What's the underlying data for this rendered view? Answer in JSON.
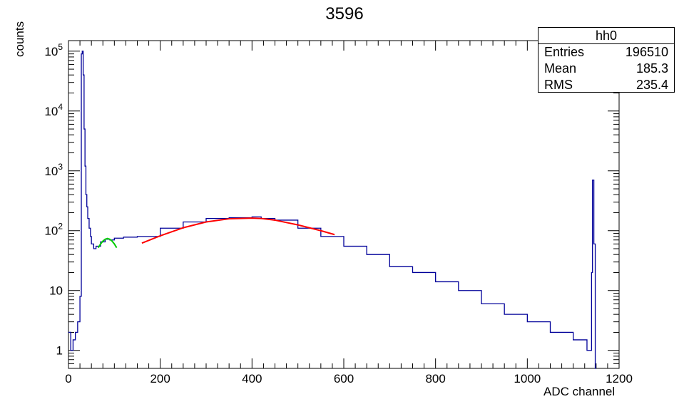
{
  "title": "3596",
  "stats_box": {
    "name": "hh0",
    "rows": [
      {
        "label": "Entries",
        "value": "196510"
      },
      {
        "label": "Mean",
        "value": "185.3"
      },
      {
        "label": "RMS",
        "value": "235.4"
      }
    ]
  },
  "chart_data": {
    "type": "line",
    "title": "3596",
    "xlabel": "ADC channel",
    "ylabel": "counts",
    "xlim": [
      0,
      1200
    ],
    "ylim": [
      0.5,
      150000
    ],
    "yscale": "log",
    "grid": false,
    "x_ticks": [
      0,
      200,
      400,
      600,
      800,
      1000,
      1200
    ],
    "y_ticks": [
      {
        "value": 1,
        "label": "1"
      },
      {
        "value": 10,
        "label": "10"
      },
      {
        "value": 100,
        "label": "10^2"
      },
      {
        "value": 1000,
        "label": "10^3"
      },
      {
        "value": 10000,
        "label": "10^4"
      },
      {
        "value": 100000,
        "label": "10^5"
      }
    ],
    "series": [
      {
        "style": "histogram",
        "color": "#000099",
        "x": [
          0,
          5,
          10,
          15,
          20,
          25,
          28,
          30,
          32,
          34,
          36,
          38,
          40,
          42,
          45,
          48,
          50,
          55,
          60,
          70,
          80,
          90,
          100,
          120,
          150,
          200,
          250,
          300,
          350,
          400,
          420,
          450,
          500,
          550,
          600,
          650,
          700,
          750,
          800,
          850,
          900,
          950,
          1000,
          1050,
          1100,
          1130,
          1140,
          1142,
          1145,
          1148,
          1150
        ],
        "y": [
          2,
          1,
          1.5,
          2,
          3,
          8,
          90000,
          100000,
          40000,
          5000,
          1200,
          400,
          250,
          160,
          110,
          80,
          60,
          50,
          55,
          65,
          72,
          70,
          75,
          78,
          80,
          110,
          140,
          160,
          165,
          170,
          160,
          150,
          110,
          80,
          55,
          40,
          25,
          20,
          14,
          10,
          6,
          4,
          3,
          2,
          1.5,
          1,
          20,
          700,
          60,
          0.5,
          0.5
        ]
      },
      {
        "name": "",
        "style": "fit",
        "color": "#00cc00",
        "x": [
          65,
          70,
          75,
          80,
          85,
          90,
          95,
          100,
          105
        ],
        "y": [
          52,
          60,
          67,
          72,
          74,
          72,
          67,
          60,
          52
        ]
      },
      {
        "name": "",
        "style": "fit",
        "color": "#ff0000",
        "x": [
          160,
          200,
          250,
          300,
          350,
          400,
          420,
          450,
          500,
          550,
          580
        ],
        "y": [
          62,
          82,
          112,
          140,
          158,
          162,
          160,
          150,
          125,
          100,
          86
        ]
      }
    ]
  }
}
